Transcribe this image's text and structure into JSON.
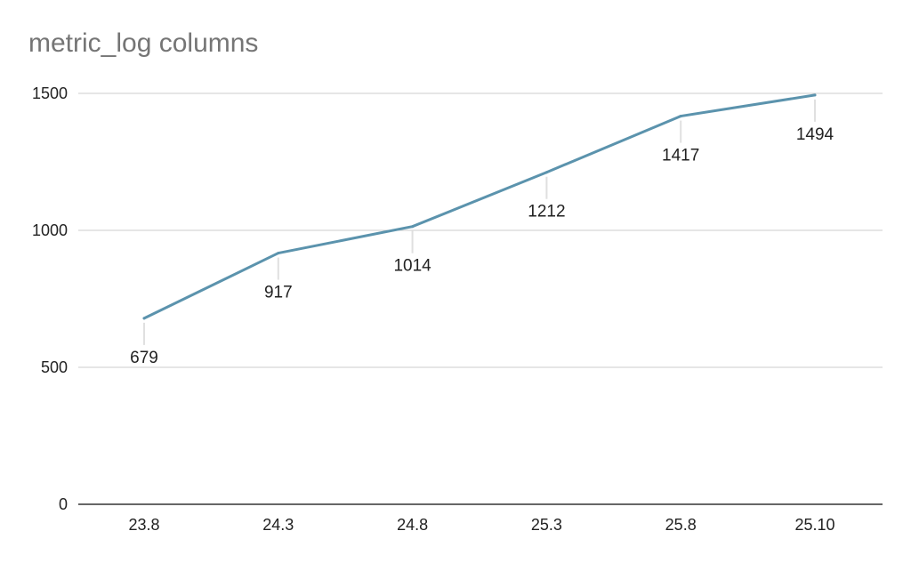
{
  "chart_data": {
    "type": "line",
    "title": "metric_log columns",
    "xlabel": "",
    "ylabel": "",
    "categories": [
      "23.8",
      "24.3",
      "24.8",
      "25.3",
      "25.8",
      "25.10"
    ],
    "series": [
      {
        "values": [
          679,
          917,
          1014,
          1212,
          1417,
          1494
        ],
        "color": "#5b93ad"
      }
    ],
    "ylim": [
      0,
      1500
    ],
    "yticks": [
      0,
      500,
      1000,
      1500
    ],
    "grid": true,
    "legend": "none",
    "data_labels": true
  }
}
